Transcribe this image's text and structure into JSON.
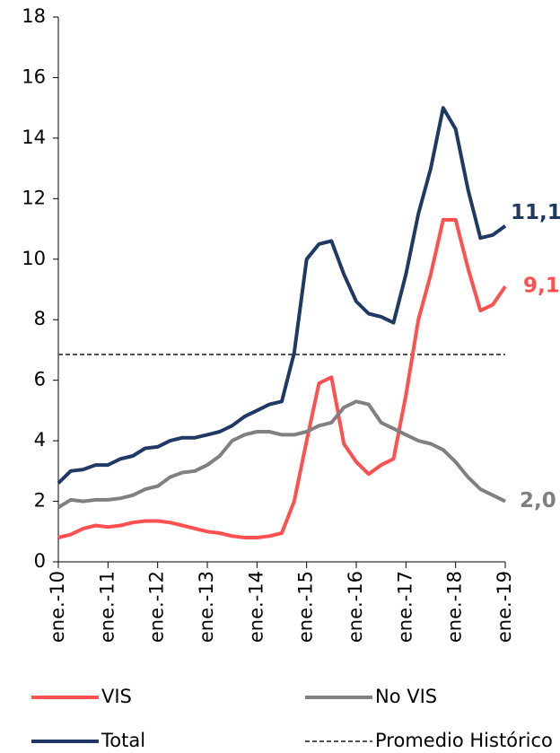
{
  "chart_data": {
    "type": "line",
    "categories": [
      "ene.-10",
      null,
      null,
      null,
      "ene.-11",
      null,
      null,
      null,
      "ene.-12",
      null,
      null,
      null,
      "ene.-13",
      null,
      null,
      null,
      "ene.-14",
      null,
      null,
      null,
      "ene.-15",
      null,
      null,
      null,
      "ene.-16",
      null,
      null,
      null,
      "ene.-17",
      null,
      null,
      null,
      "ene.-18",
      null,
      null,
      null,
      "ene.-19"
    ],
    "ylim": [
      0,
      18
    ],
    "yticks": [
      0,
      2,
      4,
      6,
      8,
      10,
      12,
      14,
      16,
      18
    ],
    "series": [
      {
        "name": "VIS",
        "color": "#ff5050",
        "end_label": "9,1",
        "values": [
          0.8,
          0.9,
          1.1,
          1.2,
          1.15,
          1.2,
          1.3,
          1.35,
          1.35,
          1.3,
          1.2,
          1.1,
          1.0,
          0.95,
          0.85,
          0.8,
          0.8,
          0.85,
          0.95,
          2.0,
          4.0,
          5.9,
          6.1,
          3.9,
          3.3,
          2.9,
          3.2,
          3.4,
          5.5,
          8.0,
          9.5,
          11.3,
          11.3,
          9.7,
          8.3,
          8.5,
          9.1
        ]
      },
      {
        "name": "No VIS",
        "color": "#808080",
        "end_label": "2,0",
        "values": [
          1.8,
          2.05,
          2.0,
          2.05,
          2.05,
          2.1,
          2.2,
          2.4,
          2.5,
          2.8,
          2.95,
          3.0,
          3.2,
          3.5,
          4.0,
          4.2,
          4.3,
          4.3,
          4.2,
          4.2,
          4.3,
          4.5,
          4.6,
          5.1,
          5.3,
          5.2,
          4.6,
          4.4,
          4.2,
          4.0,
          3.9,
          3.7,
          3.3,
          2.8,
          2.4,
          2.2,
          2.0
        ]
      },
      {
        "name": "Total",
        "color": "#1f3864",
        "end_label": "11,1",
        "values": [
          2.6,
          3.0,
          3.05,
          3.2,
          3.2,
          3.4,
          3.5,
          3.75,
          3.8,
          4.0,
          4.1,
          4.1,
          4.2,
          4.3,
          4.5,
          4.8,
          5.0,
          5.2,
          5.3,
          6.9,
          10.0,
          10.5,
          10.6,
          9.5,
          8.6,
          8.2,
          8.1,
          7.9,
          9.5,
          11.5,
          13.0,
          15.0,
          14.3,
          12.3,
          10.7,
          10.8,
          11.1
        ]
      }
    ],
    "reference_line": {
      "name": "Promedio Histórico",
      "value": 6.85,
      "color": "#555555"
    }
  }
}
